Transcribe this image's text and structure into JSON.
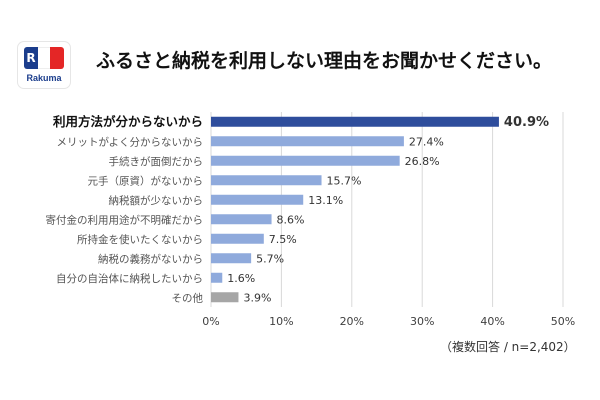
{
  "logo": {
    "icon": "rakuma-flag-logo",
    "brand": "Rakuma"
  },
  "title": "ふるさと納税を利用しない理由をお聞かせください。",
  "note": "（複数回答 / n=2,402）",
  "colors": {
    "highlight": "#2e4d9c",
    "normal": "#8faadc",
    "other": "#a6a6a6",
    "grid": "#d9d9d9",
    "text": "#404040"
  },
  "chart_data": {
    "type": "bar",
    "orientation": "horizontal",
    "title": "ふるさと納税を利用しない理由をお聞かせください。",
    "categories": [
      "利用方法が分からないから",
      "メリットがよく分からないから",
      "手続きが面倒だから",
      "元手（原資）がないから",
      "納税額が少ないから",
      "寄付金の利用用途が不明確だから",
      "所持金を使いたくないから",
      "納税の義務がないから",
      "自分の自治体に納税したいから",
      "その他"
    ],
    "values": [
      40.9,
      27.4,
      26.8,
      15.7,
      13.1,
      8.6,
      7.5,
      5.7,
      1.6,
      3.9
    ],
    "value_labels": [
      "40.9%",
      "27.4%",
      "26.8%",
      "15.7%",
      "13.1%",
      "8.6%",
      "7.5%",
      "5.7%",
      "1.6%",
      "3.9%"
    ],
    "highlight_index": 0,
    "other_index": 9,
    "xlim": [
      0,
      50
    ],
    "xticks": [
      "0%",
      "10%",
      "20%",
      "30%",
      "40%",
      "50%"
    ],
    "grid": true,
    "note": "（複数回答 / n=2,402）"
  }
}
